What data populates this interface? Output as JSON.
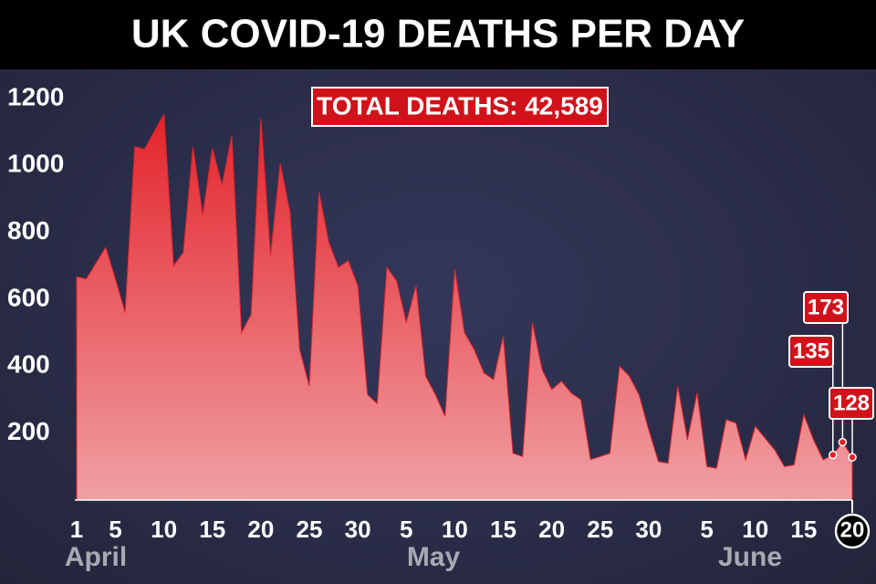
{
  "chart_data": {
    "type": "area",
    "title": "UK COVID-19 DEATHS PER DAY",
    "annotation": "TOTAL DEATHS: 42,589",
    "months": [
      "April",
      "May",
      "June"
    ],
    "categories": [
      "1",
      null,
      null,
      null,
      "5",
      null,
      null,
      null,
      null,
      "10",
      null,
      null,
      null,
      null,
      "15",
      null,
      null,
      null,
      null,
      "20",
      null,
      null,
      null,
      null,
      "25",
      null,
      null,
      null,
      null,
      "30",
      null,
      null,
      null,
      null,
      "5",
      null,
      null,
      null,
      null,
      "10",
      null,
      null,
      null,
      null,
      "15",
      null,
      null,
      null,
      null,
      "20",
      null,
      null,
      null,
      null,
      "25",
      null,
      null,
      null,
      null,
      "30",
      null,
      null,
      null,
      null,
      null,
      "5",
      null,
      null,
      null,
      null,
      "10",
      null,
      null,
      null,
      null,
      "15",
      null,
      null,
      null,
      null,
      "20"
    ],
    "values": [
      667,
      661,
      708,
      755,
      660,
      560,
      1056,
      1048,
      1100,
      1152,
      700,
      740,
      1055,
      850,
      1050,
      940,
      1090,
      500,
      555,
      1140,
      730,
      1005,
      860,
      450,
      340,
      920,
      770,
      695,
      715,
      640,
      315,
      288,
      695,
      655,
      530,
      640,
      370,
      315,
      250,
      690,
      500,
      450,
      380,
      360,
      490,
      140,
      130,
      530,
      390,
      330,
      355,
      320,
      300,
      121,
      130,
      140,
      400,
      370,
      315,
      210,
      115,
      110,
      340,
      180,
      320,
      100,
      95,
      240,
      230,
      120,
      220,
      185,
      150,
      100,
      105,
      255,
      180,
      120,
      135,
      173,
      128
    ],
    "labeled_points": [
      78,
      79,
      80
    ],
    "color": "#e3242b",
    "ylim": [
      0,
      1200
    ],
    "yticks": [
      200,
      400,
      600,
      800,
      1000,
      1200
    ],
    "grid": false
  }
}
